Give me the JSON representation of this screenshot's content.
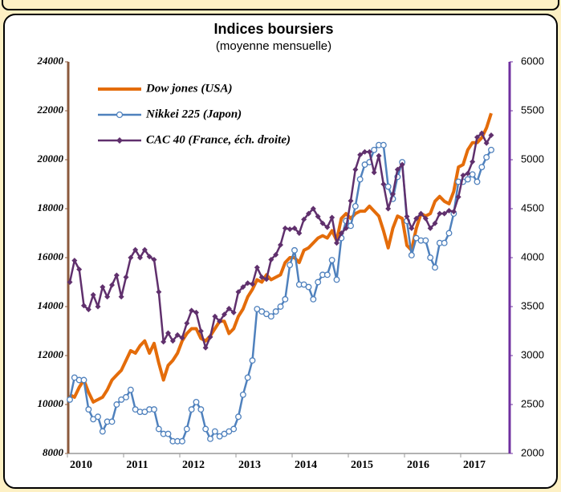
{
  "chart_data": {
    "type": "line",
    "title": "Indices boursiers",
    "subtitle": "(moyenne mensuelle)",
    "categories": [
      "2010",
      null,
      null,
      null,
      null,
      null,
      null,
      null,
      null,
      null,
      null,
      null,
      "2011",
      null,
      null,
      null,
      null,
      null,
      null,
      null,
      null,
      null,
      null,
      null,
      "2012",
      null,
      null,
      null,
      null,
      null,
      null,
      null,
      null,
      null,
      null,
      null,
      "2013",
      null,
      null,
      null,
      null,
      null,
      null,
      null,
      null,
      null,
      null,
      null,
      "2014",
      null,
      null,
      null,
      null,
      null,
      null,
      null,
      null,
      null,
      null,
      null,
      "2015",
      null,
      null,
      null,
      null,
      null,
      null,
      null,
      null,
      null,
      null,
      null,
      "2016",
      null,
      null,
      null,
      null,
      null,
      null,
      null,
      null,
      null,
      null,
      null,
      "2017",
      null,
      null,
      null,
      null,
      null,
      null
    ],
    "ylim": [
      8000,
      24000
    ],
    "yticks": [
      8000,
      10000,
      12000,
      14000,
      16000,
      18000,
      20000,
      22000,
      24000
    ],
    "y2lim": [
      2000,
      6000
    ],
    "y2ticks": [
      2000,
      2500,
      3000,
      3500,
      4000,
      4500,
      5000,
      5500,
      6000
    ],
    "series": [
      {
        "name": "Dow jones (USA)",
        "color": "#e46c0a",
        "values": [
          10400,
          10300,
          10700,
          11000,
          10500,
          10100,
          10200,
          10300,
          10600,
          11000,
          11200,
          11400,
          11800,
          12200,
          12100,
          12400,
          12600,
          12100,
          12500,
          11700,
          11000,
          11600,
          11800,
          12100,
          12600,
          12900,
          13100,
          13100,
          12700,
          12600,
          12800,
          13100,
          13400,
          13400,
          12900,
          13100,
          13600,
          13900,
          14400,
          14700,
          15100,
          15000,
          15300,
          15100,
          15200,
          15300,
          15800,
          16000,
          16000,
          15800,
          16300,
          16400,
          16600,
          16800,
          16900,
          16800,
          17100,
          16700,
          17600,
          17800,
          17600,
          17800,
          17900,
          17900,
          18100,
          17900,
          17700,
          17100,
          16400,
          17200,
          17700,
          17600,
          16500,
          16300,
          17200,
          17800,
          17700,
          17800,
          18300,
          18500,
          18300,
          18200,
          18700,
          19700,
          19800,
          20400,
          20700,
          20700,
          20900,
          21300,
          21900
        ]
      },
      {
        "name": "Nikkei 225 (Japon)",
        "color": "#4f81bd",
        "values": [
          10200,
          11100,
          11000,
          11000,
          9800,
          9400,
          9500,
          8900,
          9300,
          9300,
          10000,
          10200,
          10300,
          10600,
          9800,
          9700,
          9700,
          9800,
          9800,
          9000,
          8800,
          8800,
          8500,
          8500,
          8500,
          9000,
          9800,
          10100,
          9800,
          9000,
          8600,
          8900,
          8700,
          8800,
          8900,
          9000,
          9500,
          10400,
          11100,
          11800,
          13900,
          13800,
          13700,
          13600,
          13800,
          14000,
          14300,
          15700,
          16300,
          14900,
          14900,
          14800,
          14300,
          15000,
          15300,
          15300,
          15900,
          15100,
          16800,
          17500,
          17300,
          18100,
          19200,
          19800,
          19900,
          20400,
          20600,
          20600,
          18900,
          18400,
          19300,
          19900,
          17500,
          16100,
          16800,
          16700,
          16700,
          16000,
          15600,
          16600,
          16600,
          17000,
          17800,
          19100,
          19100,
          19200,
          19400,
          19100,
          19700,
          20100,
          20400
        ]
      },
      {
        "name": "CAC 40 (France, éch. droite)",
        "color": "#60306d",
        "axis": "y2",
        "values": [
          3750,
          3970,
          3880,
          3510,
          3470,
          3620,
          3500,
          3700,
          3600,
          3720,
          3820,
          3600,
          3800,
          4000,
          4080,
          4000,
          4080,
          4010,
          3980,
          3650,
          3140,
          3230,
          3150,
          3210,
          3180,
          3330,
          3460,
          3440,
          3250,
          3080,
          3190,
          3400,
          3350,
          3420,
          3480,
          3440,
          3650,
          3700,
          3740,
          3730,
          3900,
          3800,
          3780,
          3980,
          4030,
          4130,
          4300,
          4290,
          4300,
          4250,
          4390,
          4450,
          4500,
          4420,
          4350,
          4310,
          4410,
          4150,
          4250,
          4300,
          4580,
          4900,
          5050,
          5080,
          5080,
          4870,
          5040,
          4750,
          4500,
          4650,
          4900,
          4950,
          4420,
          4300,
          4400,
          4450,
          4400,
          4300,
          4350,
          4450,
          4450,
          4480,
          4470,
          4620,
          4840,
          4860,
          4980,
          5230,
          5270,
          5170,
          5250
        ]
      }
    ]
  }
}
